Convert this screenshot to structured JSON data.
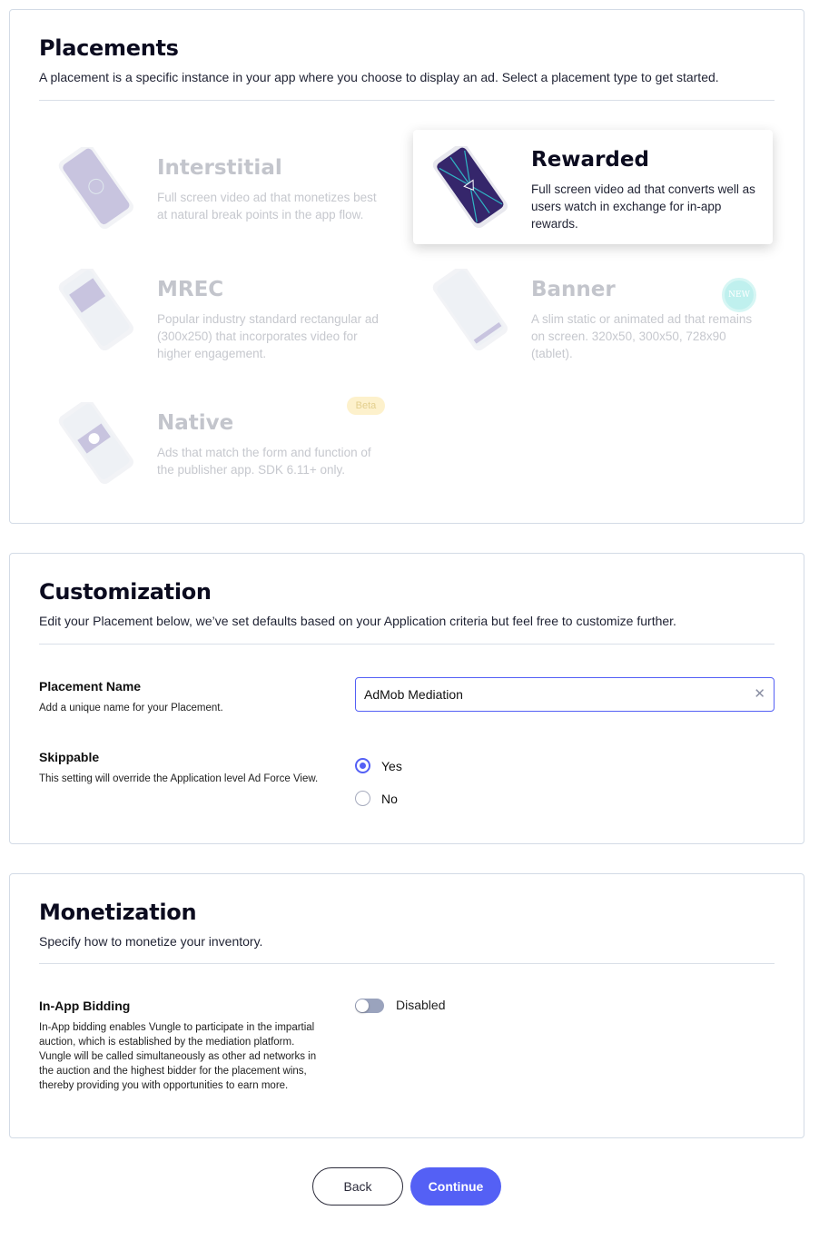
{
  "placements": {
    "title": "Placements",
    "subtitle": "A placement is a specific instance in your app where you choose to display an ad. Select a placement type to get started.",
    "types": [
      {
        "title": "Interstitial",
        "desc": "Full screen video ad that monetizes best at natural break points in the app flow.",
        "selected": false
      },
      {
        "title": "Rewarded",
        "desc": "Full screen video ad that converts well as users watch in exchange for in-app rewards.",
        "selected": true
      },
      {
        "title": "MREC",
        "desc": "Popular industry standard rectangular ad (300x250) that incorporates video for higher engagement.",
        "selected": false
      },
      {
        "title": "Banner",
        "desc": "A slim static or animated ad that remains on screen. 320x50, 300x50, 728x90 (tablet).",
        "badge": "NEW",
        "selected": false
      },
      {
        "title": "Native",
        "desc": "Ads that match the form and function of the publisher app. SDK 6.11+ only.",
        "badge": "Beta",
        "selected": false
      }
    ]
  },
  "customization": {
    "title": "Customization",
    "subtitle": "Edit your Placement below, we’ve set defaults based on your Application criteria but feel free to customize further.",
    "name_label": "Placement Name",
    "name_hint": "Add a unique name for your Placement.",
    "name_value": "AdMob Mediation",
    "skippable_label": "Skippable",
    "skippable_hint": "This setting will override the Application level Ad Force View.",
    "options": [
      "Yes",
      "No"
    ],
    "selected": "Yes"
  },
  "monetization": {
    "title": "Monetization",
    "subtitle": "Specify how to monetize your inventory.",
    "bidding_label": "In-App Bidding",
    "bidding_hint": "In-App bidding enables Vungle to participate in the impartial auction, which is established by the mediation platform. Vungle will be called simultaneously as other ad networks in the auction and the highest bidder for the placement wins, thereby providing you with opportunities to earn more.",
    "toggle_state": "Disabled",
    "toggle_on": false
  },
  "actions": {
    "back": "Back",
    "continue": "Continue"
  },
  "colors": {
    "accent": "#5460f5",
    "border": "#d3dbe6"
  }
}
